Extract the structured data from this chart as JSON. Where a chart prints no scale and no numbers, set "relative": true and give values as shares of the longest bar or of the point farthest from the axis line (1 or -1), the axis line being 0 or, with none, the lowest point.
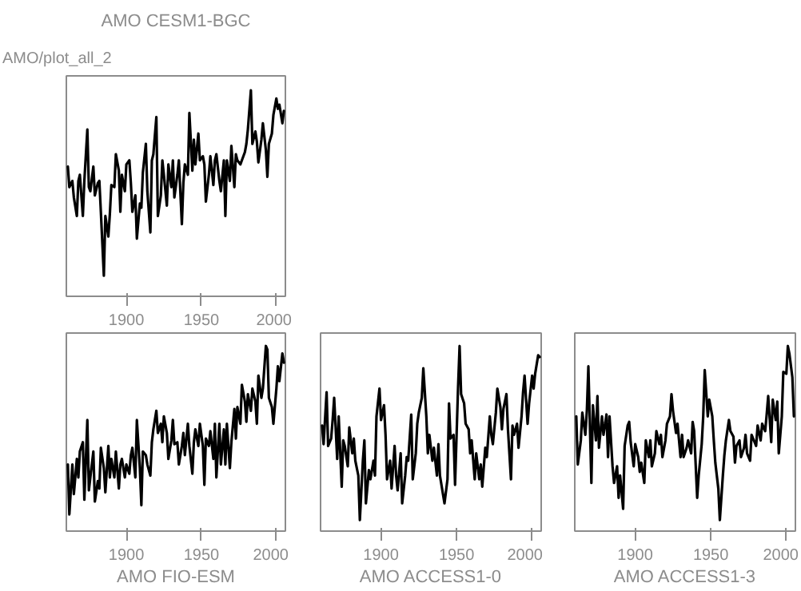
{
  "chart_data": [
    {
      "type": "line",
      "title": "AMO CESM1-BGC",
      "annotations": [
        "AMO/plot_all_2"
      ],
      "relative": true,
      "xlim": [
        1860,
        2006
      ],
      "xticks": [
        1900,
        1950,
        2000
      ],
      "tick_labels": "x",
      "x": [
        1861,
        1862,
        1864,
        1865,
        1867,
        1868,
        1869,
        1871,
        1872,
        1874,
        1875,
        1876,
        1878,
        1879,
        1881,
        1882,
        1883,
        1885,
        1886,
        1888,
        1889,
        1890,
        1892,
        1893,
        1895,
        1896,
        1897,
        1899,
        1900,
        1902,
        1903,
        1904,
        1906,
        1907,
        1909,
        1910,
        1911,
        1913,
        1914,
        1916,
        1917,
        1918,
        1920,
        1921,
        1923,
        1924,
        1925,
        1927,
        1928,
        1930,
        1931,
        1932,
        1934,
        1935,
        1937,
        1938,
        1939,
        1941,
        1942,
        1944,
        1945,
        1946,
        1948,
        1949,
        1951,
        1952,
        1953,
        1955,
        1956,
        1958,
        1959,
        1960,
        1962,
        1963,
        1965,
        1966,
        1967,
        1969,
        1970,
        1972,
        1973,
        1974,
        1976,
        1977,
        1979,
        1980,
        1981,
        1983,
        1984,
        1986,
        1987,
        1988,
        1990,
        1991,
        1993,
        1994,
        1995,
        1997,
        1998,
        2000,
        2001,
        2002,
        2004,
        2005
      ],
      "series": [
        {
          "color": "#000000",
          "values": [
            0.63,
            0.53,
            0.56,
            0.48,
            0.39,
            0.56,
            0.59,
            0.39,
            0.56,
            0.81,
            0.53,
            0.51,
            0.63,
            0.49,
            0.55,
            0.56,
            0.41,
            0.1,
            0.39,
            0.29,
            0.4,
            0.54,
            0.53,
            0.69,
            0.61,
            0.41,
            0.59,
            0.51,
            0.64,
            0.66,
            0.55,
            0.41,
            0.49,
            0.28,
            0.45,
            0.43,
            0.6,
            0.74,
            0.51,
            0.31,
            0.66,
            0.69,
            0.87,
            0.39,
            0.49,
            0.66,
            0.59,
            0.44,
            0.64,
            0.53,
            0.66,
            0.48,
            0.59,
            0.66,
            0.35,
            0.55,
            0.64,
            0.59,
            0.89,
            0.61,
            0.76,
            0.64,
            0.79,
            0.66,
            0.68,
            0.64,
            0.46,
            0.59,
            0.68,
            0.54,
            0.66,
            0.69,
            0.56,
            0.51,
            0.66,
            0.39,
            0.66,
            0.56,
            0.73,
            0.53,
            0.69,
            0.66,
            0.64,
            0.66,
            0.7,
            0.74,
            0.81,
            1.0,
            0.74,
            0.8,
            0.75,
            0.65,
            0.76,
            0.84,
            0.71,
            0.58,
            0.74,
            0.79,
            0.88,
            0.96,
            0.91,
            0.93,
            0.84,
            0.9
          ]
        }
      ]
    },
    {
      "type": "line",
      "xlabel": "AMO FIO-ESM",
      "relative": true,
      "xlim": [
        1860,
        2006
      ],
      "xticks": [
        1900,
        1950,
        2000
      ],
      "tick_labels": "x",
      "x": [
        1861,
        1862,
        1864,
        1865,
        1867,
        1868,
        1869,
        1871,
        1872,
        1874,
        1875,
        1876,
        1878,
        1879,
        1881,
        1882,
        1883,
        1885,
        1886,
        1888,
        1889,
        1890,
        1892,
        1893,
        1895,
        1896,
        1897,
        1899,
        1900,
        1902,
        1903,
        1904,
        1906,
        1907,
        1909,
        1910,
        1911,
        1913,
        1914,
        1916,
        1917,
        1918,
        1920,
        1921,
        1923,
        1924,
        1925,
        1927,
        1928,
        1930,
        1931,
        1932,
        1934,
        1935,
        1937,
        1938,
        1939,
        1941,
        1942,
        1944,
        1945,
        1946,
        1948,
        1949,
        1951,
        1952,
        1953,
        1955,
        1956,
        1958,
        1959,
        1960,
        1962,
        1963,
        1965,
        1966,
        1967,
        1969,
        1970,
        1972,
        1973,
        1974,
        1976,
        1977,
        1979,
        1980,
        1981,
        1983,
        1984,
        1986,
        1987,
        1988,
        1990,
        1991,
        1993,
        1994,
        1995,
        1997,
        1998,
        2000,
        2001,
        2002,
        2004,
        2005
      ],
      "series": [
        {
          "color": "#000000",
          "values": [
            0.36,
            0.09,
            0.36,
            0.2,
            0.39,
            0.29,
            0.43,
            0.48,
            0.17,
            0.6,
            0.22,
            0.29,
            0.43,
            0.16,
            0.27,
            0.23,
            0.45,
            0.34,
            0.21,
            0.46,
            0.29,
            0.39,
            0.29,
            0.43,
            0.23,
            0.36,
            0.39,
            0.29,
            0.36,
            0.31,
            0.41,
            0.45,
            0.29,
            0.6,
            0.34,
            0.14,
            0.43,
            0.41,
            0.36,
            0.3,
            0.48,
            0.55,
            0.65,
            0.53,
            0.58,
            0.48,
            0.62,
            0.53,
            0.39,
            0.49,
            0.6,
            0.47,
            0.48,
            0.36,
            0.46,
            0.53,
            0.41,
            0.58,
            0.46,
            0.31,
            0.48,
            0.55,
            0.46,
            0.58,
            0.46,
            0.25,
            0.5,
            0.46,
            0.54,
            0.39,
            0.58,
            0.29,
            0.58,
            0.36,
            0.55,
            0.36,
            0.58,
            0.34,
            0.48,
            0.66,
            0.5,
            0.67,
            0.58,
            0.79,
            0.7,
            0.59,
            0.74,
            0.65,
            0.77,
            0.7,
            0.58,
            0.84,
            0.72,
            0.77,
            1.0,
            0.98,
            0.72,
            0.67,
            0.58,
            0.77,
            0.89,
            0.81,
            0.96,
            0.91
          ]
        }
      ]
    },
    {
      "type": "line",
      "xlabel": "AMO ACCESS1-0",
      "relative": true,
      "xlim": [
        1860,
        2006
      ],
      "xticks": [
        1900,
        1950,
        2000
      ],
      "tick_labels": "x",
      "x": [
        1861,
        1862,
        1864,
        1865,
        1867,
        1868,
        1869,
        1871,
        1872,
        1874,
        1875,
        1876,
        1878,
        1879,
        1881,
        1882,
        1883,
        1885,
        1886,
        1888,
        1889,
        1890,
        1892,
        1893,
        1895,
        1896,
        1897,
        1899,
        1900,
        1902,
        1903,
        1904,
        1906,
        1907,
        1909,
        1910,
        1911,
        1913,
        1914,
        1916,
        1917,
        1918,
        1920,
        1921,
        1923,
        1924,
        1925,
        1927,
        1928,
        1930,
        1931,
        1932,
        1934,
        1935,
        1937,
        1938,
        1939,
        1941,
        1942,
        1944,
        1945,
        1946,
        1948,
        1949,
        1951,
        1952,
        1953,
        1955,
        1956,
        1958,
        1959,
        1960,
        1962,
        1963,
        1965,
        1966,
        1967,
        1969,
        1970,
        1972,
        1973,
        1974,
        1976,
        1977,
        1979,
        1980,
        1981,
        1983,
        1984,
        1986,
        1987,
        1988,
        1990,
        1991,
        1993,
        1994,
        1995,
        1997,
        1998,
        2000,
        2001,
        2002,
        2004,
        2005
      ],
      "series": [
        {
          "color": "#000000",
          "values": [
            0.57,
            0.47,
            0.75,
            0.46,
            0.5,
            0.6,
            0.72,
            0.39,
            0.62,
            0.24,
            0.49,
            0.46,
            0.35,
            0.56,
            0.42,
            0.5,
            0.38,
            0.3,
            0.06,
            0.38,
            0.49,
            0.15,
            0.33,
            0.28,
            0.38,
            0.3,
            0.62,
            0.77,
            0.6,
            0.68,
            0.52,
            0.28,
            0.38,
            0.23,
            0.46,
            0.3,
            0.22,
            0.42,
            0.15,
            0.3,
            0.4,
            0.38,
            0.63,
            0.28,
            0.42,
            0.58,
            0.64,
            0.72,
            0.88,
            0.62,
            0.42,
            0.52,
            0.38,
            0.45,
            0.3,
            0.47,
            0.3,
            0.2,
            0.15,
            0.28,
            0.69,
            0.5,
            0.52,
            0.25,
            0.78,
            1.0,
            0.74,
            0.69,
            0.58,
            0.55,
            0.42,
            0.49,
            0.28,
            0.42,
            0.28,
            0.36,
            0.24,
            0.45,
            0.4,
            0.62,
            0.52,
            0.47,
            0.64,
            0.77,
            0.67,
            0.55,
            0.66,
            0.74,
            0.55,
            0.28,
            0.57,
            0.52,
            0.58,
            0.45,
            0.62,
            0.75,
            0.84,
            0.58,
            0.69,
            0.84,
            0.77,
            0.85,
            0.95,
            0.94
          ]
        }
      ]
    },
    {
      "type": "line",
      "xlabel": "AMO ACCESS1-3",
      "relative": true,
      "xlim": [
        1860,
        2006
      ],
      "xticks": [
        1900,
        1950,
        2000
      ],
      "tick_labels": "x",
      "x": [
        1861,
        1862,
        1864,
        1865,
        1867,
        1868,
        1869,
        1871,
        1872,
        1874,
        1875,
        1876,
        1878,
        1879,
        1881,
        1882,
        1883,
        1885,
        1886,
        1888,
        1889,
        1890,
        1892,
        1893,
        1895,
        1896,
        1897,
        1899,
        1900,
        1902,
        1903,
        1904,
        1906,
        1907,
        1909,
        1910,
        1911,
        1913,
        1914,
        1916,
        1917,
        1918,
        1920,
        1921,
        1923,
        1924,
        1925,
        1927,
        1928,
        1930,
        1931,
        1932,
        1934,
        1935,
        1937,
        1938,
        1939,
        1941,
        1942,
        1944,
        1945,
        1946,
        1948,
        1949,
        1951,
        1952,
        1953,
        1955,
        1956,
        1958,
        1959,
        1960,
        1962,
        1963,
        1965,
        1966,
        1967,
        1969,
        1970,
        1972,
        1973,
        1974,
        1976,
        1977,
        1979,
        1980,
        1981,
        1983,
        1984,
        1986,
        1987,
        1988,
        1990,
        1991,
        1993,
        1994,
        1995,
        1997,
        1998,
        2000,
        2001,
        2002,
        2004,
        2005
      ],
      "series": [
        {
          "color": "#000000",
          "values": [
            0.62,
            0.36,
            0.49,
            0.64,
            0.52,
            0.65,
            0.89,
            0.26,
            0.68,
            0.49,
            0.73,
            0.45,
            0.62,
            0.52,
            0.63,
            0.4,
            0.62,
            0.35,
            0.26,
            0.35,
            0.18,
            0.3,
            0.12,
            0.46,
            0.57,
            0.59,
            0.48,
            0.35,
            0.47,
            0.4,
            0.32,
            0.37,
            0.26,
            0.49,
            0.4,
            0.49,
            0.35,
            0.42,
            0.54,
            0.47,
            0.52,
            0.4,
            0.49,
            0.58,
            0.62,
            0.74,
            0.65,
            0.53,
            0.58,
            0.4,
            0.52,
            0.4,
            0.45,
            0.49,
            0.42,
            0.59,
            0.54,
            0.18,
            0.3,
            0.47,
            0.62,
            0.87,
            0.62,
            0.71,
            0.62,
            0.49,
            0.37,
            0.23,
            0.06,
            0.3,
            0.41,
            0.49,
            0.6,
            0.54,
            0.51,
            0.37,
            0.46,
            0.49,
            0.4,
            0.45,
            0.52,
            0.42,
            0.38,
            0.52,
            0.48,
            0.46,
            0.57,
            0.49,
            0.58,
            0.54,
            0.63,
            0.73,
            0.48,
            0.71,
            0.6,
            0.7,
            0.42,
            0.62,
            0.86,
            0.85,
            1.0,
            0.96,
            0.83,
            0.62
          ]
        }
      ]
    }
  ]
}
